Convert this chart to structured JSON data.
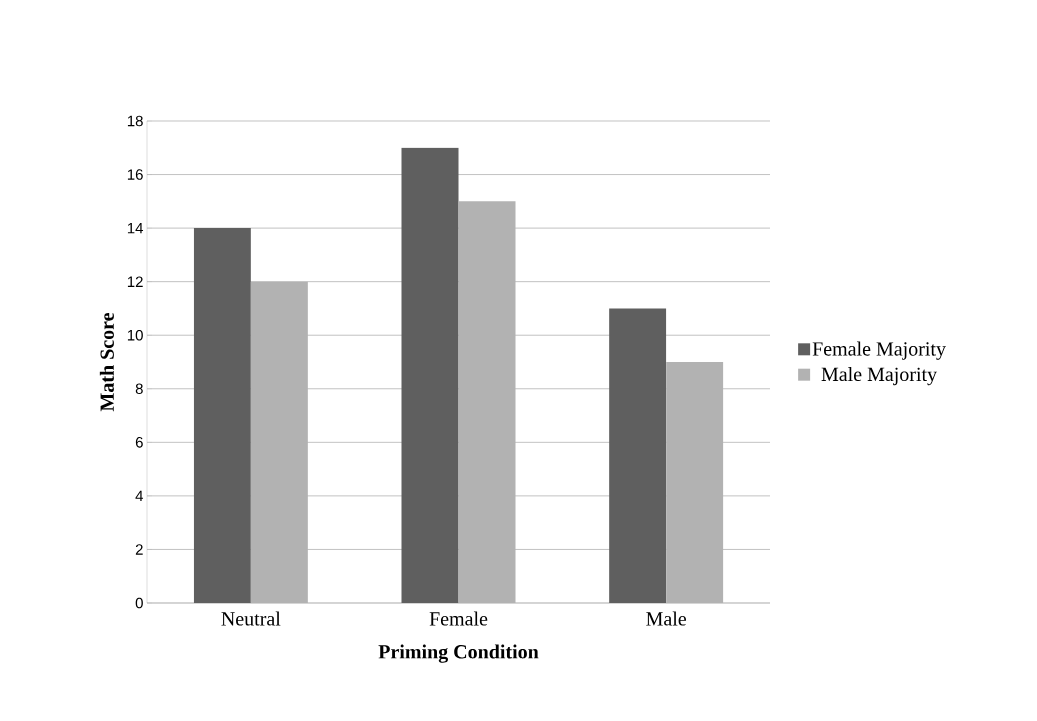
{
  "chart_data": {
    "type": "bar",
    "xlabel": "Priming Condition",
    "ylabel": "Math Score",
    "categories": [
      "Neutral",
      "Female",
      "Male"
    ],
    "series": [
      {
        "name": "Female Majority",
        "color": "#5f5f5f",
        "values": [
          14,
          17,
          11
        ]
      },
      {
        "name": "Male Majority",
        "color": "#b2b2b2",
        "values": [
          12,
          15,
          9
        ]
      }
    ],
    "ylim": [
      0,
      18
    ],
    "yticks": [
      0,
      2,
      4,
      6,
      8,
      10,
      12,
      14,
      16,
      18
    ],
    "grid": "y",
    "legend": "right"
  }
}
